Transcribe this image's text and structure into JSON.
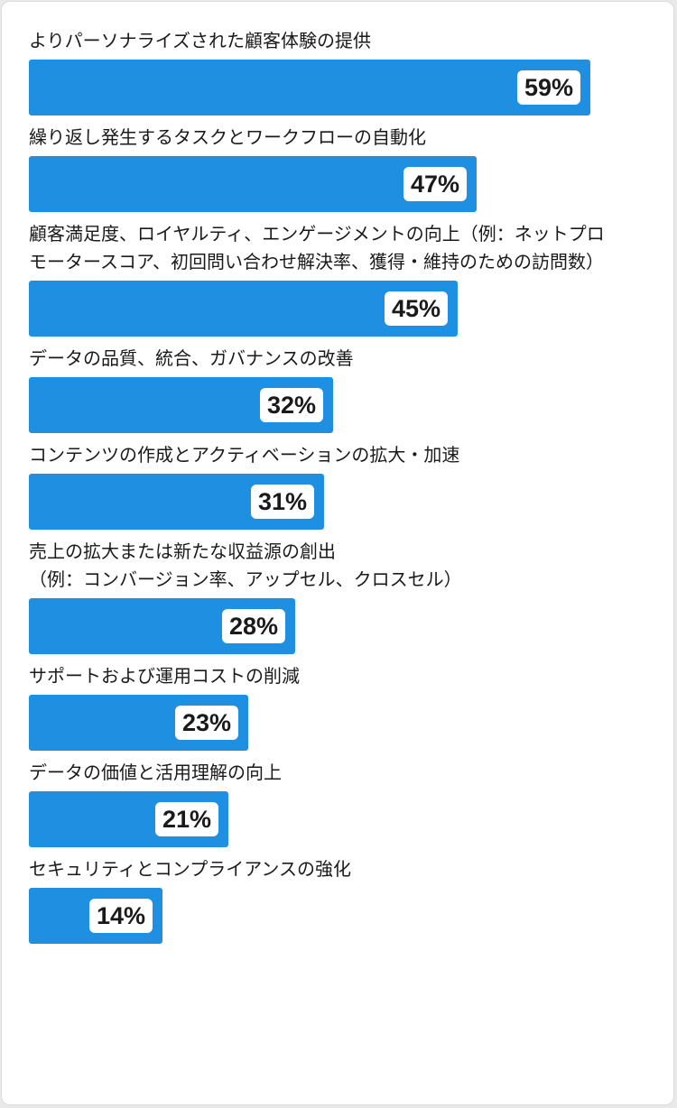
{
  "colors": {
    "bar": "#1e8fe1",
    "text": "#1a1a1a",
    "background": "#ffffff"
  },
  "chart_data": {
    "type": "bar",
    "orientation": "horizontal",
    "categories": [
      [
        "よりパーソナライズされた顧客体験の提供"
      ],
      [
        "繰り返し発生するタスクとワークフローの自動化"
      ],
      [
        "顧客満足度、ロイヤルティ、エンゲージメントの向上（例：ネットプロ",
        "モータースコア、初回問い合わせ解決率、獲得・維持のための訪問数）"
      ],
      [
        "データの品質、統合、ガバナンスの改善"
      ],
      [
        "コンテンツの作成とアクティベーションの拡大・加速"
      ],
      [
        "売上の拡大または新たな収益源の創出",
        "（例：コンバージョン率、アップセル、クロスセル）"
      ],
      [
        "サポートおよび運用コストの削減"
      ],
      [
        "データの価値と活用理解の向上"
      ],
      [
        "セキュリティとコンプライアンスの強化"
      ]
    ],
    "values": [
      59,
      47,
      45,
      32,
      31,
      28,
      23,
      21,
      14
    ],
    "value_labels": [
      "59%",
      "47%",
      "45%",
      "32%",
      "31%",
      "28%",
      "23%",
      "21%",
      "14%"
    ],
    "unit": "%",
    "xlim": [
      0,
      66
    ]
  }
}
